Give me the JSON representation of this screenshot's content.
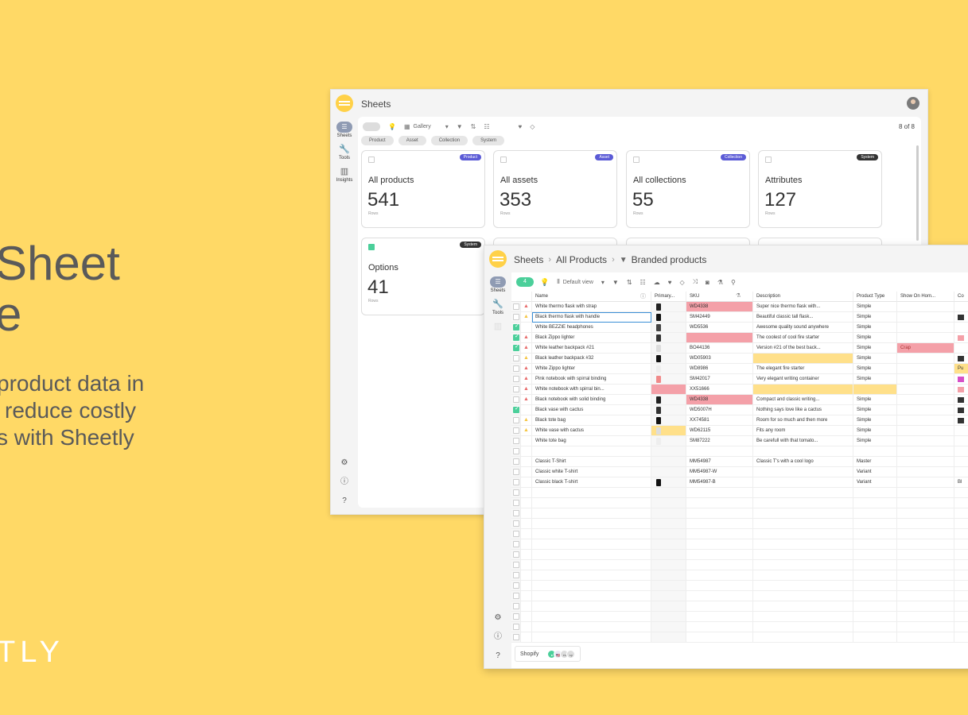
{
  "marketing": {
    "headline_line1": "Sheet",
    "headline_line2": "e",
    "sub_line1": "product data in",
    "sub_line2": "reduce costly",
    "sub_line3": "s with Sheetly",
    "brand": "TLY"
  },
  "gallery_window": {
    "app_title": "Sheets",
    "nav": [
      {
        "label": "Sheets",
        "icon": "sheets-icon"
      },
      {
        "label": "Tools",
        "icon": "wrench-icon"
      },
      {
        "label": "Insights",
        "icon": "chart-icon"
      }
    ],
    "toolbar": {
      "view_label": "Gallery",
      "count": "8 of 8"
    },
    "filter_chips": [
      "Product",
      "Asset",
      "Collection",
      "System"
    ],
    "cards": [
      {
        "badge": "Product",
        "badge_color": "#5b5bd6",
        "title": "All products",
        "count": "541",
        "sub": "Rows"
      },
      {
        "badge": "Asset",
        "badge_color": "#5b5bd6",
        "title": "All assets",
        "count": "353",
        "sub": "Rows"
      },
      {
        "badge": "Collection",
        "badge_color": "#5b5bd6",
        "title": "All collections",
        "count": "55",
        "sub": "Rows"
      },
      {
        "badge": "System",
        "badge_color": "#333333",
        "title": "Attributes",
        "count": "127",
        "sub": "Rows"
      },
      {
        "badge": "System",
        "badge_color": "#333333",
        "title": "Options",
        "count": "41",
        "sub": "Rows"
      }
    ]
  },
  "table_window": {
    "breadcrumb": [
      "Sheets",
      "All Products",
      "Branded products"
    ],
    "nav": [
      {
        "label": "Sheets",
        "icon": "sheets-icon"
      },
      {
        "label": "Tools",
        "icon": "wrench-icon"
      }
    ],
    "toolbar": {
      "selected_count": "4",
      "view_label": "Default view"
    },
    "columns": [
      "Name",
      "Primary...",
      "SKU",
      "Description",
      "Product Type",
      "Show On Hom...",
      "Co"
    ],
    "rows": [
      {
        "checked": false,
        "warn": "red",
        "name": "White thermo flask with strap",
        "thumb": "#222222",
        "sku": "WD4338",
        "sku_bg": "#f4a0a8",
        "desc": "Super nice thermo flask with...",
        "desc_bg": "",
        "type": "Simple",
        "home": "",
        "home_bg": "",
        "co": "",
        "co_bg": ""
      },
      {
        "checked": false,
        "warn": "yellow",
        "name": "Black thermo flask with handle",
        "thumb": "#111111",
        "sku": "SM42449",
        "sku_bg": "",
        "desc": "Beautiful classic tall flask...",
        "desc_bg": "",
        "type": "Simple",
        "home": "",
        "home_bg": "",
        "co": "",
        "co_bg": "#333333"
      },
      {
        "checked": true,
        "warn": "",
        "name": "White BEZZIE headphones",
        "thumb": "#444444",
        "sku": "WD5536",
        "sku_bg": "",
        "desc": "Awesome quality sound anywhere",
        "desc_bg": "",
        "type": "Simple",
        "home": "",
        "home_bg": "",
        "co": "",
        "co_bg": ""
      },
      {
        "checked": true,
        "warn": "red",
        "name": "Black Zippo lighter",
        "thumb": "#333333",
        "sku": "",
        "sku_bg": "#f4a0a8",
        "desc": "The coolest of cool fire starter",
        "desc_bg": "",
        "type": "Simple",
        "home": "",
        "home_bg": "",
        "co": "",
        "co_bg": "#f4a0a8"
      },
      {
        "checked": true,
        "warn": "red",
        "name": "White leather backpack #21",
        "thumb": "#dddddd",
        "sku": "BO44136",
        "sku_bg": "",
        "desc": "Version #21 of the best back...",
        "desc_bg": "",
        "type": "Simple",
        "home": "Crap",
        "home_bg": "#f4a0a8",
        "co": "",
        "co_bg": ""
      },
      {
        "checked": false,
        "warn": "yellow",
        "name": "Black leather backpack #32",
        "thumb": "#111111",
        "sku": "WD05903",
        "sku_bg": "",
        "desc": "",
        "desc_bg": "#ffe08a",
        "type": "Simple",
        "home": "",
        "home_bg": "",
        "co": "",
        "co_bg": "#333333"
      },
      {
        "checked": false,
        "warn": "red",
        "name": "White Zippo lighter",
        "thumb": "#eeeeee",
        "sku": "WD8986",
        "sku_bg": "",
        "desc": "The elegant fire starter",
        "desc_bg": "",
        "type": "Simple",
        "home": "",
        "home_bg": "",
        "co": "Pu",
        "co_bg": "#ffe08a"
      },
      {
        "checked": false,
        "warn": "red",
        "name": "Pink notebook with spirral binding",
        "thumb": "#f08a8a",
        "sku": "SM42017",
        "sku_bg": "",
        "desc": "Very elegant writing container",
        "desc_bg": "",
        "type": "Simple",
        "home": "",
        "home_bg": "",
        "co": "",
        "co_bg": "#d64fc8"
      },
      {
        "checked": false,
        "warn": "red",
        "name": "White notebook with spirral bin...",
        "thumb": "",
        "thumb_bg": "#f4a0a8",
        "sku": "XX51666",
        "sku_bg": "",
        "desc": "",
        "desc_bg": "#ffe08a",
        "type": "",
        "type_bg": "#ffe08a",
        "home": "",
        "home_bg": "",
        "co": "",
        "co_bg": "#f4a0a8"
      },
      {
        "checked": false,
        "warn": "red",
        "name": "Black notebook with solid binding",
        "thumb": "#222222",
        "sku": "WD4338",
        "sku_bg": "#f4a0a8",
        "desc": "Compact and classic writing...",
        "desc_bg": "",
        "type": "Simple",
        "home": "",
        "home_bg": "",
        "co": "",
        "co_bg": "#333333"
      },
      {
        "checked": true,
        "warn": "",
        "name": "Black vase with cactus",
        "thumb": "#333333",
        "sku": "WD5007H",
        "sku_bg": "",
        "desc": "Nothing says love like a cactus",
        "desc_bg": "",
        "type": "Simple",
        "home": "",
        "home_bg": "",
        "co": "",
        "co_bg": "#333333"
      },
      {
        "checked": false,
        "warn": "yellow",
        "name": "Black tote bag",
        "thumb": "#111111",
        "sku": "XX74581",
        "sku_bg": "",
        "desc": "Room for so much and then more",
        "desc_bg": "",
        "type": "Simple",
        "home": "",
        "home_bg": "",
        "co": "",
        "co_bg": "#333333"
      },
      {
        "checked": false,
        "warn": "yellow",
        "name": "White vase with cactus",
        "thumb": "#dddddd",
        "thumb_bg": "#ffe08a",
        "sku": "WD62115",
        "sku_bg": "",
        "desc": "Fits any room",
        "desc_bg": "",
        "type": "Simple",
        "home": "",
        "home_bg": "",
        "co": "",
        "co_bg": ""
      },
      {
        "checked": false,
        "warn": "",
        "name": "White tote bag",
        "thumb": "#eeeeee",
        "sku": "SM87222",
        "sku_bg": "",
        "desc": "Be carefull with that tomato...",
        "desc_bg": "",
        "type": "Simple",
        "home": "",
        "home_bg": "",
        "co": "",
        "co_bg": ""
      },
      {
        "checked": false,
        "warn": "",
        "name": "",
        "thumb": "",
        "sku": "",
        "sku_bg": "",
        "desc": "",
        "desc_bg": "",
        "type": "",
        "home": "",
        "home_bg": "",
        "co": "",
        "co_bg": ""
      },
      {
        "checked": false,
        "warn": "",
        "name": "Classic T-Shirt",
        "thumb": "",
        "sku": "MM54987",
        "sku_bg": "",
        "desc": "Classic T's with a cool logo",
        "desc_bg": "",
        "type": "Master",
        "home": "",
        "home_bg": "",
        "co": "",
        "co_bg": ""
      },
      {
        "checked": false,
        "warn": "",
        "name": "Classic white T-shirt",
        "thumb": "",
        "sku": "MM54987-W",
        "sku_bg": "",
        "desc": "",
        "desc_bg": "",
        "type": "Variant",
        "home": "",
        "home_bg": "",
        "co": "",
        "co_bg": ""
      },
      {
        "checked": false,
        "warn": "",
        "name": "Classic black T-shirt",
        "thumb": "#111111",
        "sku": "MM54987-B",
        "sku_bg": "",
        "desc": "",
        "desc_bg": "",
        "type": "Variant",
        "home": "",
        "home_bg": "",
        "co": "Bl",
        "co_bg": ""
      }
    ],
    "empty_rows": 15,
    "footer": {
      "channel": "Shopify",
      "locales": [
        "🇺🇸",
        "es",
        "sp"
      ]
    }
  }
}
